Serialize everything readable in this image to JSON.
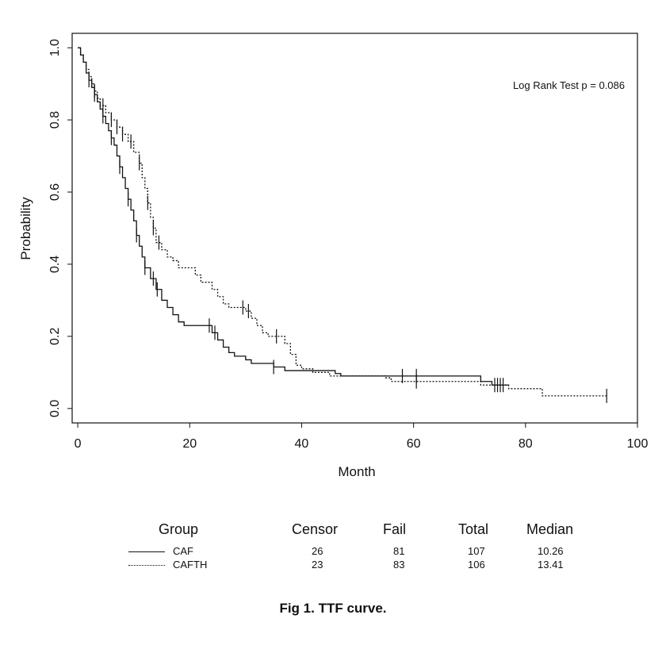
{
  "chart_data": {
    "type": "line",
    "subtype": "kaplan-meier survival curve",
    "xlabel": "Month",
    "ylabel": "Probability",
    "xlim": [
      -1,
      100
    ],
    "ylim": [
      -0.04,
      1.04
    ],
    "xticks": [
      0,
      20,
      40,
      60,
      80,
      100
    ],
    "yticks": [
      0.0,
      0.2,
      0.4,
      0.6,
      0.8,
      1.0
    ],
    "xtick_labels": [
      "0",
      "20",
      "40",
      "60",
      "80",
      "100"
    ],
    "ytick_labels": [
      "0.0",
      "0.2",
      "0.4",
      "0.6",
      "0.8",
      "1.0"
    ],
    "grid": false,
    "annotation": "Log Rank Test  p = 0.086",
    "series": [
      {
        "name": "CAF",
        "style": "solid",
        "steps": [
          [
            0,
            1.0
          ],
          [
            0.5,
            0.98
          ],
          [
            1,
            0.96
          ],
          [
            1.5,
            0.93
          ],
          [
            2,
            0.91
          ],
          [
            2.5,
            0.89
          ],
          [
            3,
            0.87
          ],
          [
            3.5,
            0.85
          ],
          [
            4,
            0.83
          ],
          [
            4.5,
            0.81
          ],
          [
            5,
            0.79
          ],
          [
            5.5,
            0.77
          ],
          [
            6,
            0.75
          ],
          [
            6.5,
            0.73
          ],
          [
            7,
            0.7
          ],
          [
            7.5,
            0.67
          ],
          [
            8,
            0.64
          ],
          [
            8.5,
            0.61
          ],
          [
            9,
            0.58
          ],
          [
            9.5,
            0.55
          ],
          [
            10,
            0.52
          ],
          [
            10.5,
            0.48
          ],
          [
            11,
            0.45
          ],
          [
            11.5,
            0.42
          ],
          [
            12,
            0.39
          ],
          [
            13,
            0.36
          ],
          [
            14,
            0.33
          ],
          [
            15,
            0.3
          ],
          [
            16,
            0.28
          ],
          [
            17,
            0.26
          ],
          [
            18,
            0.24
          ],
          [
            19,
            0.23
          ],
          [
            24,
            0.21
          ],
          [
            25,
            0.19
          ],
          [
            26,
            0.17
          ],
          [
            27,
            0.155
          ],
          [
            28,
            0.145
          ],
          [
            30,
            0.135
          ],
          [
            31,
            0.125
          ],
          [
            35,
            0.115
          ],
          [
            37,
            0.105
          ],
          [
            46,
            0.097
          ],
          [
            47,
            0.09
          ],
          [
            72,
            0.075
          ],
          [
            74,
            0.065
          ],
          [
            77,
            0.065
          ]
        ],
        "censor_marks": [
          2,
          3,
          4.5,
          6,
          7.5,
          9,
          10.5,
          12,
          13.5,
          14.2,
          23.5,
          24.5,
          35,
          58,
          60.5,
          74.5,
          75.5
        ]
      },
      {
        "name": "CAFTH",
        "style": "dotted",
        "steps": [
          [
            0,
            1.0
          ],
          [
            0.5,
            0.98
          ],
          [
            1,
            0.96
          ],
          [
            1.5,
            0.94
          ],
          [
            2,
            0.92
          ],
          [
            2.5,
            0.9
          ],
          [
            3,
            0.88
          ],
          [
            3.5,
            0.86
          ],
          [
            4,
            0.84
          ],
          [
            5,
            0.82
          ],
          [
            6,
            0.8
          ],
          [
            7,
            0.78
          ],
          [
            8,
            0.76
          ],
          [
            9,
            0.74
          ],
          [
            10,
            0.71
          ],
          [
            11,
            0.68
          ],
          [
            11.5,
            0.64
          ],
          [
            12,
            0.61
          ],
          [
            12.5,
            0.57
          ],
          [
            13,
            0.53
          ],
          [
            13.5,
            0.5
          ],
          [
            14,
            0.46
          ],
          [
            15,
            0.44
          ],
          [
            16,
            0.42
          ],
          [
            17,
            0.41
          ],
          [
            18,
            0.39
          ],
          [
            21,
            0.37
          ],
          [
            22,
            0.35
          ],
          [
            24,
            0.33
          ],
          [
            25,
            0.31
          ],
          [
            26,
            0.29
          ],
          [
            27,
            0.28
          ],
          [
            30,
            0.27
          ],
          [
            31,
            0.25
          ],
          [
            32,
            0.23
          ],
          [
            33,
            0.21
          ],
          [
            34,
            0.2
          ],
          [
            37,
            0.18
          ],
          [
            38,
            0.15
          ],
          [
            39,
            0.12
          ],
          [
            40,
            0.11
          ],
          [
            42,
            0.1
          ],
          [
            45,
            0.09
          ],
          [
            55,
            0.085
          ],
          [
            56,
            0.075
          ],
          [
            72,
            0.065
          ],
          [
            77,
            0.055
          ],
          [
            83,
            0.035
          ],
          [
            94.5,
            0.035
          ]
        ],
        "censor_marks": [
          3,
          4.5,
          6,
          7,
          8,
          9.5,
          11,
          12.5,
          13.5,
          14.5,
          29.5,
          30.5,
          35.5,
          60.5,
          75,
          76,
          94.5
        ]
      }
    ],
    "legend": {
      "headers": [
        "Group",
        "Censor",
        "Fail",
        "Total",
        "Median"
      ],
      "rows": [
        {
          "group": "CAF",
          "censor": "26",
          "fail": "81",
          "total": "107",
          "median": "10.26"
        },
        {
          "group": "CAFTH",
          "censor": "23",
          "fail": "83",
          "total": "106",
          "median": "13.41"
        }
      ]
    },
    "caption": "Fig 1.   TTF curve."
  }
}
